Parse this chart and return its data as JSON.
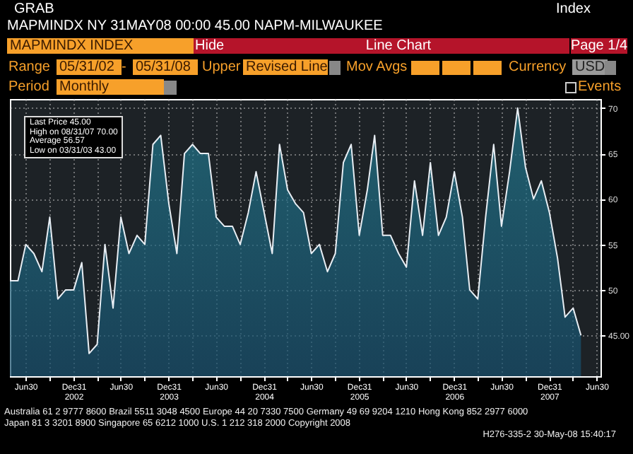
{
  "chart_data": {
    "type": "area",
    "title": "MAPMINDX NY 31MAY08 00:00 45.00 NAPM-MILWAUKEE",
    "subtitle": "MAPMINDX INDEX",
    "x": [
      "2002-05",
      "2002-06",
      "2002-07",
      "2002-08",
      "2002-09",
      "2002-10",
      "2002-11",
      "2002-12",
      "2003-01",
      "2003-02",
      "2003-03",
      "2003-04",
      "2003-05",
      "2003-06",
      "2003-07",
      "2003-08",
      "2003-09",
      "2003-10",
      "2003-11",
      "2003-12",
      "2004-01",
      "2004-02",
      "2004-03",
      "2004-04",
      "2004-05",
      "2004-06",
      "2004-07",
      "2004-08",
      "2004-09",
      "2004-10",
      "2004-11",
      "2004-12",
      "2005-01",
      "2005-02",
      "2005-03",
      "2005-04",
      "2005-05",
      "2005-06",
      "2005-07",
      "2005-08",
      "2005-09",
      "2005-10",
      "2005-11",
      "2005-12",
      "2006-01",
      "2006-02",
      "2006-03",
      "2006-04",
      "2006-05",
      "2006-06",
      "2006-07",
      "2006-08",
      "2006-09",
      "2006-10",
      "2006-11",
      "2006-12",
      "2007-01",
      "2007-02",
      "2007-03",
      "2007-04",
      "2007-05",
      "2007-06",
      "2007-07",
      "2007-08",
      "2007-09",
      "2007-10",
      "2007-11",
      "2007-12",
      "2008-01",
      "2008-02",
      "2008-03",
      "2008-04",
      "2008-05"
    ],
    "series": [
      {
        "color": "#237a8e",
        "values": [
          51,
          51,
          55,
          54,
          52,
          58,
          49,
          50,
          50,
          53,
          43,
          44,
          55,
          48,
          58,
          54,
          56,
          55,
          66,
          67,
          59.5,
          54,
          65,
          66,
          65,
          65,
          58,
          57,
          57,
          55,
          58.5,
          63,
          58.5,
          54,
          66,
          61,
          59.5,
          58.5,
          54,
          55,
          52,
          54,
          64,
          66,
          56,
          61,
          67,
          56,
          56,
          54,
          52.5,
          62,
          56,
          64,
          56,
          58,
          63,
          58,
          50,
          49,
          58,
          66,
          57,
          63,
          70,
          63.5,
          60,
          62,
          58.5,
          53.5,
          47,
          48,
          45
        ]
      }
    ],
    "xlim": [
      "2002-05",
      "2008-07-15"
    ],
    "ylim": [
      40.5,
      71
    ],
    "yticks": [
      {
        "value": 45,
        "label": "45.00"
      },
      50,
      55,
      60,
      65,
      70
    ],
    "xticks": [
      {
        "value": "2002-06-30",
        "label": "Jun30"
      },
      {
        "value": "2002-09-30",
        "label": null
      },
      {
        "value": "2002-12-31",
        "label": "Dec31 2002"
      },
      {
        "value": "2003-03-31",
        "label": null
      },
      {
        "value": "2003-06-30",
        "label": "Jun30"
      },
      {
        "value": "2003-09-30",
        "label": null
      },
      {
        "value": "2003-12-31",
        "label": "Dec31 2003"
      },
      {
        "value": "2004-03-31",
        "label": null
      },
      {
        "value": "2004-06-30",
        "label": "Jun30"
      },
      {
        "value": "2004-09-30",
        "label": null
      },
      {
        "value": "2004-12-31",
        "label": "Dec31 2004"
      },
      {
        "value": "2005-03-31",
        "label": null
      },
      {
        "value": "2005-06-30",
        "label": "Jun30"
      },
      {
        "value": "2005-09-30",
        "label": null
      },
      {
        "value": "2005-12-31",
        "label": "Dec31 2005"
      },
      {
        "value": "2006-03-31",
        "label": null
      },
      {
        "value": "2006-06-30",
        "label": "Jun30"
      },
      {
        "value": "2006-09-30",
        "label": null
      },
      {
        "value": "2006-12-31",
        "label": "Dec31 2006"
      },
      {
        "value": "2007-03-31",
        "label": null
      },
      {
        "value": "2007-06-30",
        "label": "Jun30"
      },
      {
        "value": "2007-09-30",
        "label": null
      },
      {
        "value": "2007-12-31",
        "label": "Dec31 2007"
      },
      {
        "value": "2008-03-31",
        "label": null
      },
      {
        "value": "2008-06-30",
        "label": "Jun30"
      }
    ],
    "grid": true,
    "annotations": [
      "GRAB",
      "Index",
      "Hide",
      "Line Chart",
      "Page 1/4",
      "Range",
      "05/31/02",
      "-",
      "05/31/08",
      "Upper",
      "Revised Line",
      "Mov Avgs",
      "Currency",
      "USD",
      "Period",
      "Monthly",
      "Events",
      "Last Price 45.00",
      "High on 08/31/07 70.00",
      "Average 56.57",
      "Low on 03/31/03 43.00",
      "Australia 61 2 9777 8600 Brazil 5511 3048 4500 Europe 44 20 7330 7500 Germany 49 69 9204 1210 Hong Kong 852 2977 6000",
      "Japan 81 3 3201 8900 Singapore 65 6212 1000 U.S. 1 212 318 2000 Copyright 2008",
      "H276-335-2 30-May-08 15:40:17"
    ]
  }
}
